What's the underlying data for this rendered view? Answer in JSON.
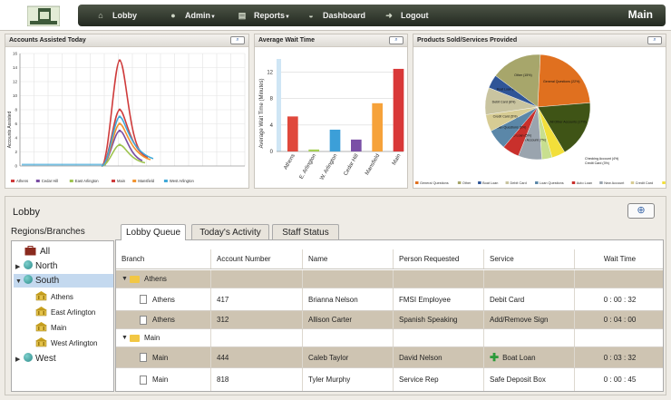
{
  "nav": {
    "items": [
      {
        "label": "Lobby",
        "icon": "home-icon"
      },
      {
        "label": "Admin",
        "icon": "user-icon"
      },
      {
        "label": "Reports",
        "icon": "report-icon"
      },
      {
        "label": "Dashboard",
        "icon": "gauge-icon"
      },
      {
        "label": "Logout",
        "icon": "logout-icon"
      }
    ],
    "page_title": "Main"
  },
  "charts": {
    "accounts": {
      "title": "Accounts Assisted Today",
      "ylabel": "Accounts Assisted",
      "yticks": [
        "0",
        "2",
        "4",
        "6",
        "8",
        "10",
        "12",
        "14",
        "16"
      ],
      "legend": [
        "Athens",
        "Cedar Hill",
        "East Arlington",
        "Main",
        "Mansfield",
        "West Arlington"
      ]
    },
    "wait": {
      "title": "Average Wait Time",
      "ylabel": "Average Wait Time (Minutes)",
      "yticks": [
        "0",
        "4",
        "8",
        "12"
      ]
    },
    "products": {
      "title": "Products Sold/Services Provided",
      "slice_labels": [
        "General Questions (22%)",
        "All Other Accounts (17%)",
        "Checking Account (4%)",
        "Credit Card (3%)",
        "New Account (7%)",
        "Auto Loan (5%)",
        "Loan Questions (6%)",
        "Credit Card (5%)",
        "Debit Card (8%)",
        "Boat Loan (4%)",
        "Other (15%)"
      ],
      "legend": [
        "General Questions",
        "Other",
        "Boat Loan",
        "Debit Card",
        "Loan Questions",
        "Auto Loan",
        "New Account",
        "Credit Card",
        "Checking Account"
      ]
    }
  },
  "chart_data": [
    {
      "type": "line",
      "title": "Accounts Assisted Today",
      "ylabel": "Accounts Assisted",
      "ylim": [
        0,
        16
      ],
      "series": [
        {
          "name": "Athens",
          "color": "#cf3b3b",
          "peak": 15
        },
        {
          "name": "Cedar Hill",
          "color": "#7a4da3",
          "peak": 5
        },
        {
          "name": "East Arlington",
          "color": "#9ec44f",
          "peak": 3
        },
        {
          "name": "Main",
          "color": "#cf3b3b",
          "peak": 8
        },
        {
          "name": "Mansfield",
          "color": "#f2932e",
          "peak": 6
        },
        {
          "name": "West Arlington",
          "color": "#3fa9d8",
          "peak": 7
        }
      ]
    },
    {
      "type": "bar",
      "title": "Average Wait Time",
      "ylabel": "Average Wait Time (Minutes)",
      "ylim": [
        0,
        14
      ],
      "categories": [
        "Athens",
        "E. Arlington",
        "W. Arlington",
        "Cedar Hill",
        "Mansfield",
        "Main"
      ],
      "values": [
        5.3,
        0.3,
        3.3,
        1.8,
        7.3,
        12.5
      ],
      "colors": [
        "#e0483c",
        "#a6cf55",
        "#3c9fd8",
        "#7a4fa6",
        "#f6a23a",
        "#d93838"
      ]
    },
    {
      "type": "pie",
      "title": "Products Sold/Services Provided",
      "slices": [
        {
          "label": "General Questions",
          "value": 22,
          "color": "#e0701f"
        },
        {
          "label": "All Other Accounts",
          "value": 17,
          "color": "#3f5416"
        },
        {
          "label": "Checking Account",
          "value": 4,
          "color": "#f2df3a"
        },
        {
          "label": "Credit Card",
          "value": 3,
          "color": "#c8df8f"
        },
        {
          "label": "New Account",
          "value": 7,
          "color": "#9aa4ae"
        },
        {
          "label": "Auto Loan",
          "value": 5,
          "color": "#c9302c"
        },
        {
          "label": "Loan Questions",
          "value": 6,
          "color": "#5b87a8"
        },
        {
          "label": "Credit Card",
          "value": 5,
          "color": "#d7cc94"
        },
        {
          "label": "Debit Card",
          "value": 8,
          "color": "#c9c4a0"
        },
        {
          "label": "Boat Loan",
          "value": 4,
          "color": "#2f5597"
        },
        {
          "label": "Other",
          "value": 15,
          "color": "#a7a66b"
        }
      ]
    }
  ],
  "lobby": {
    "title": "Lobby",
    "regions_title": "Regions/Branches",
    "tree": {
      "all": "All",
      "north": "North",
      "south": "South",
      "branches": [
        "Athens",
        "East Arlington",
        "Main",
        "West Arlington"
      ],
      "west": "West"
    },
    "tabs": [
      "Lobby Queue",
      "Today's Activity",
      "Staff Status"
    ],
    "columns": [
      "Branch",
      "Account Number",
      "Name",
      "Person Requested",
      "Service",
      "Wait Time"
    ],
    "groups": [
      {
        "name": "Athens",
        "rows": [
          {
            "branch": "Athens",
            "account": "417",
            "name": "Brianna Nelson",
            "person": "FMSI Employee",
            "service": "Debit Card",
            "wait": "0 : 00 : 32"
          },
          {
            "branch": "Athens",
            "account": "312",
            "name": "Allison Carter",
            "person": "Spanish Speaking",
            "service": "Add/Remove Sign",
            "wait": "0 : 04 : 00"
          }
        ]
      },
      {
        "name": "Main",
        "rows": [
          {
            "branch": "Main",
            "account": "444",
            "name": "Caleb Taylor",
            "person": "David Nelson",
            "service": "Boat Loan",
            "wait": "0 : 03 : 32"
          },
          {
            "branch": "Main",
            "account": "818",
            "name": "Tyler Murphy",
            "person": "Service Rep",
            "service": "Safe Deposit Box",
            "wait": "0 : 00 : 45"
          }
        ]
      }
    ]
  }
}
